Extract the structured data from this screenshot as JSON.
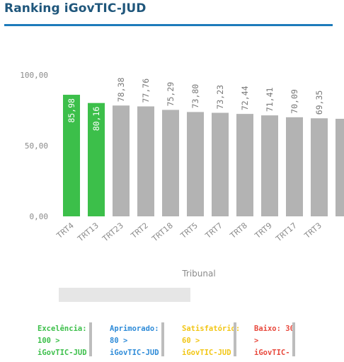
{
  "header": {
    "title": "Ranking iGovTIC-JUD"
  },
  "colors": {
    "highlight": "#3cbf4a",
    "default": "#b3b3b3",
    "title": "#20577c",
    "rule": "#1d7bbb"
  },
  "chart_data": {
    "type": "bar",
    "orientation": "vertical",
    "xlabel": "Tribunal",
    "ylabel": "",
    "ylim": [
      0,
      100
    ],
    "yticks": [
      "0,00",
      "50,00",
      "100,00"
    ],
    "grid": false,
    "categories": [
      "TRT4",
      "TRT13",
      "TRT23",
      "TRT2",
      "TRT18",
      "TRT5",
      "TRT7",
      "TRT8",
      "TRT9",
      "TRT17",
      "TRT3",
      ""
    ],
    "values": [
      85.98,
      80.16,
      78.38,
      77.76,
      75.29,
      73.8,
      73.23,
      72.44,
      71.41,
      70.09,
      69.35,
      69.0
    ],
    "labels": [
      "85,98",
      "80,16",
      "78,38",
      "77,76",
      "75,29",
      "73,80",
      "73,23",
      "72,44",
      "71,41",
      "70,09",
      "69,35",
      ""
    ],
    "highlighted": [
      "TRT4",
      "TRT13"
    ]
  },
  "legend": [
    {
      "lines": [
        "Excelência:",
        "100 >",
        "iGovTIC-JUD"
      ],
      "color": "#3cbf4a"
    },
    {
      "lines": [
        "Aprimorado:",
        "80 >",
        "iGovTIC-JUD"
      ],
      "color": "#2e8bd8"
    },
    {
      "lines": [
        "Satisfatório:",
        "60 >",
        "iGovTIC-JUD"
      ],
      "color": "#f2c615"
    },
    {
      "lines": [
        "Baixo: 30",
        ">",
        "iGovTIC-"
      ],
      "color": "#e8483c"
    }
  ]
}
